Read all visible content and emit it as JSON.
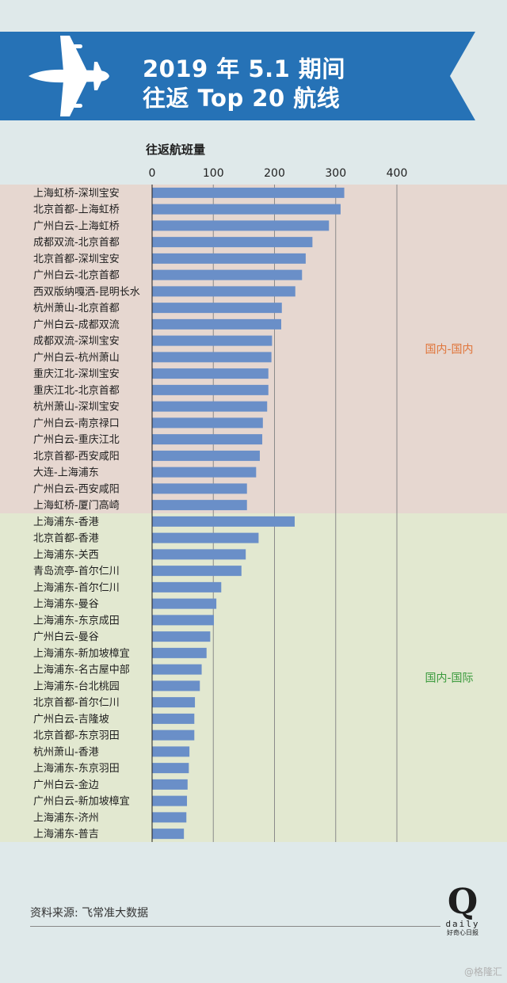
{
  "header": {
    "title_line1": "2019 年 5.1 期间",
    "title_line2": "往返 Top 20 航线",
    "banner_color": "#2672b6"
  },
  "source_label": "资料来源: 飞常准大数据",
  "logo": {
    "mark": "Q",
    "wordmark": "daily",
    "cn": "好奇心日报"
  },
  "watermark": "@格隆汇",
  "chart_data": {
    "type": "bar",
    "orientation": "horizontal",
    "title": "",
    "xlabel": "往返航班量",
    "xlim": [
      0,
      400
    ],
    "xticks": [
      0,
      100,
      200,
      300,
      400
    ],
    "grid": true,
    "bar_color": "#6a8fc8",
    "groups": [
      {
        "name": "国内-国内",
        "background": "#e6d7d0",
        "label_color": "#e0753a",
        "categories": [
          "上海虹桥-深圳宝安",
          "北京首都-上海虹桥",
          "广州白云-上海虹桥",
          "成都双流-北京首都",
          "北京首都-深圳宝安",
          "广州白云-北京首都",
          "西双版纳嘎洒-昆明长水",
          "杭州萧山-北京首都",
          "广州白云-成都双流",
          "成都双流-深圳宝安",
          "广州白云-杭州萧山",
          "重庆江北-深圳宝安",
          "重庆江北-北京首都",
          "杭州萧山-深圳宝安",
          "广州白云-南京禄口",
          "广州白云-重庆江北",
          "北京首都-西安咸阳",
          "大连-上海浦东",
          "广州白云-西安咸阳",
          "上海虹桥-厦门高崎"
        ],
        "values": [
          314,
          308,
          289,
          262,
          251,
          245,
          234,
          212,
          211,
          196,
          195,
          190,
          190,
          188,
          181,
          180,
          176,
          170,
          155,
          155
        ]
      },
      {
        "name": "国内-国际",
        "background": "#e2e8d0",
        "label_color": "#3a9a3c",
        "categories": [
          "上海浦东-香港",
          "北京首都-香港",
          "上海浦东-关西",
          "青岛流亭-首尔仁川",
          "上海浦东-首尔仁川",
          "上海浦东-曼谷",
          "上海浦东-东京成田",
          "广州白云-曼谷",
          "上海浦东-新加坡樟宜",
          "上海浦东-名古屋中部",
          "上海浦东-台北桃园",
          "北京首都-首尔仁川",
          "广州白云-吉隆坡",
          "北京首都-东京羽田",
          "杭州萧山-香港",
          "上海浦东-东京羽田",
          "广州白云-金边",
          "广州白云-新加坡樟宜",
          "上海浦东-济州",
          "上海浦东-普吉"
        ],
        "values": [
          233,
          174,
          153,
          146,
          113,
          105,
          101,
          95,
          89,
          81,
          78,
          70,
          69,
          69,
          61,
          60,
          58,
          57,
          56,
          52
        ]
      }
    ]
  }
}
